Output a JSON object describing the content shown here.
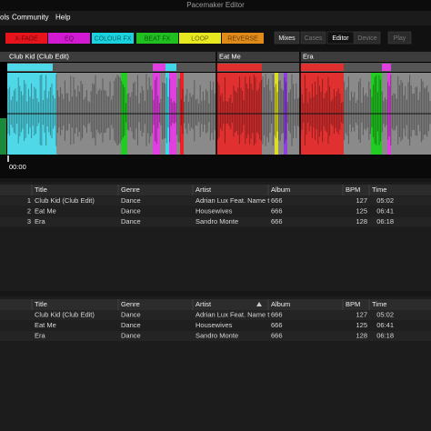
{
  "window": {
    "title": "Pacemaker Editor"
  },
  "menu": [
    "ols",
    "Community",
    "Help"
  ],
  "effects": [
    "X-FADE",
    "EQ",
    "COLOUR FX",
    "BEAT FX",
    "LOOP",
    "REVERSE"
  ],
  "tabs": [
    "Mixes",
    "Cases",
    "Editor",
    "Device",
    "Play"
  ],
  "timeline": {
    "tracks": [
      "Club Kid (Club Edit)",
      "Eat Me",
      "Era"
    ],
    "time": "00:00"
  },
  "playlist": {
    "headers": [
      "Title",
      "Genre",
      "Artist",
      "Album",
      "BPM",
      "Time"
    ],
    "rows": [
      [
        1,
        "Club Kid (Club Edit)",
        "Dance",
        "Adrian Lux Feat. Name t",
        666,
        127,
        "05:02"
      ],
      [
        2,
        "Eat Me",
        "Dance",
        "Housewives",
        666,
        125,
        "06:41"
      ],
      [
        3,
        "Era",
        "Dance",
        "Sandro Monte",
        666,
        128,
        "06:18"
      ]
    ]
  },
  "library": {
    "headers": [
      "Title",
      "Genre",
      "Artist",
      "Album",
      "BPM",
      "Time"
    ],
    "rows": [
      [
        "Club Kid (Club Edit)",
        "Dance",
        "Adrian Lux Feat. Name t",
        666,
        127,
        "05:02"
      ],
      [
        "Eat Me",
        "Dance",
        "Housewives",
        666,
        125,
        "06:41"
      ],
      [
        "Era",
        "Dance",
        "Sandro Monte",
        666,
        128,
        "06:18"
      ]
    ]
  }
}
